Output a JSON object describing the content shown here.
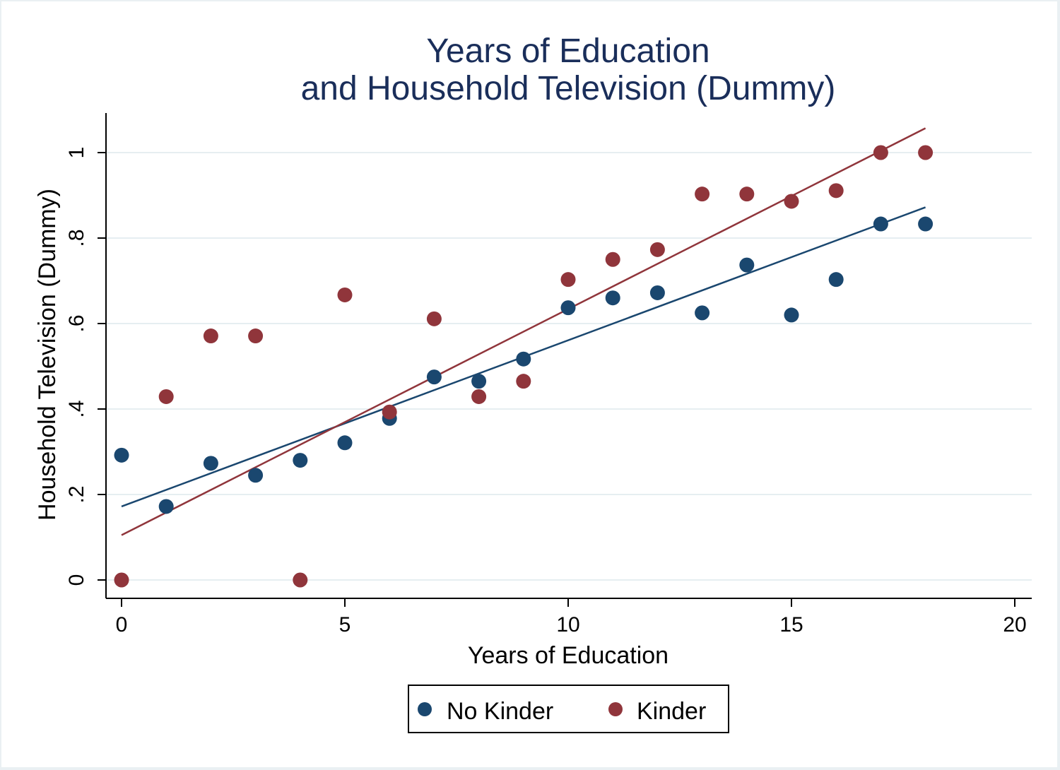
{
  "chart_data": {
    "type": "scatter",
    "title": [
      "Years of Education",
      "and Household Television (Dummy)"
    ],
    "xlabel": "Years of Education",
    "ylabel": "Household Television (Dummy)",
    "xlim": [
      0,
      20
    ],
    "ylim": [
      0,
      1
    ],
    "xticks": [
      0,
      5,
      10,
      15,
      20
    ],
    "xtick_labels": [
      "0",
      "5",
      "10",
      "15",
      "20"
    ],
    "yticks": [
      0,
      0.2,
      0.4,
      0.6,
      0.8,
      1
    ],
    "ytick_labels": [
      "0",
      ".2",
      ".4",
      ".6",
      ".8",
      "1"
    ],
    "grid": "horizontal",
    "legend_position": "bottom",
    "series": [
      {
        "name": "No Kinder",
        "color": "#1a476f",
        "x": [
          0,
          1,
          2,
          3,
          4,
          5,
          6,
          7,
          8,
          9,
          10,
          11,
          12,
          13,
          14,
          15,
          16,
          17,
          18
        ],
        "y": [
          0.292,
          0.172,
          0.273,
          0.245,
          0.28,
          0.321,
          0.378,
          0.475,
          0.465,
          0.517,
          0.637,
          0.66,
          0.672,
          0.625,
          0.737,
          0.62,
          0.703,
          0.833,
          0.833
        ],
        "fit": {
          "x": [
            0,
            18
          ],
          "y": [
            0.172,
            0.872
          ]
        }
      },
      {
        "name": "Kinder",
        "color": "#90353b",
        "x": [
          0,
          1,
          2,
          3,
          4,
          5,
          6,
          7,
          8,
          9,
          10,
          11,
          12,
          13,
          14,
          15,
          16,
          17,
          18
        ],
        "y": [
          0,
          0.429,
          0.571,
          0.571,
          0,
          0.667,
          0.393,
          0.611,
          0.429,
          0.465,
          0.703,
          0.75,
          0.773,
          0.903,
          0.903,
          0.886,
          0.911,
          1,
          1
        ],
        "fit": {
          "x": [
            0,
            18
          ],
          "y": [
            0.105,
            1.057
          ]
        }
      }
    ]
  }
}
